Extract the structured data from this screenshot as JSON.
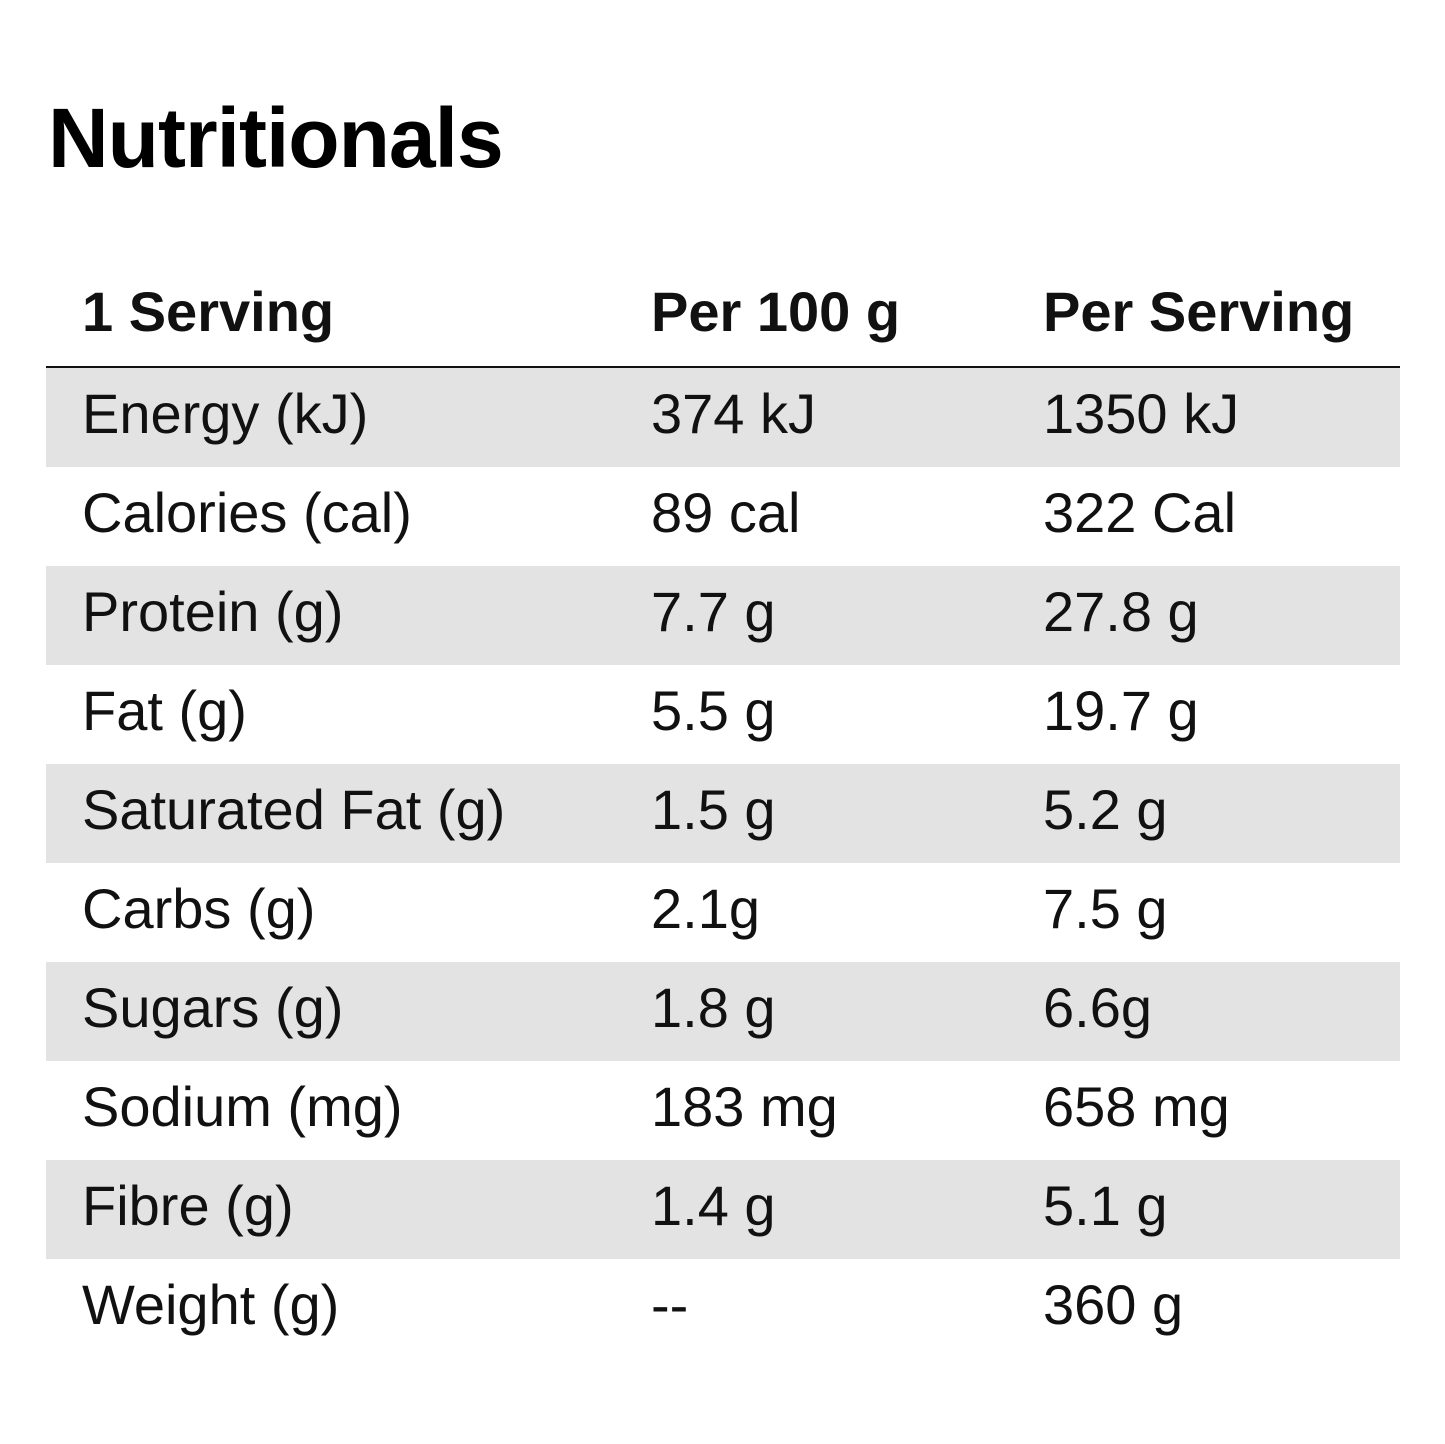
{
  "title": "Nutritionals",
  "table": {
    "headers": [
      "1 Serving",
      "Per 100 g",
      "Per Serving"
    ],
    "rows": [
      {
        "label": "Energy (kJ)",
        "per100": "374 kJ",
        "perServing": "1350 kJ"
      },
      {
        "label": "Calories (cal)",
        "per100": "89 cal",
        "perServing": "322 Cal"
      },
      {
        "label": "Protein (g)",
        "per100": "7.7 g",
        "perServing": "27.8 g"
      },
      {
        "label": "Fat (g)",
        "per100": "5.5 g",
        "perServing": "19.7 g"
      },
      {
        "label": "Saturated Fat (g)",
        "per100": "1.5 g",
        "perServing": "5.2 g"
      },
      {
        "label": "Carbs (g)",
        "per100": "2.1g",
        "perServing": "7.5 g"
      },
      {
        "label": "Sugars (g)",
        "per100": "1.8 g",
        "perServing": "6.6g"
      },
      {
        "label": "Sodium (mg)",
        "per100": "183 mg",
        "perServing": "658 mg"
      },
      {
        "label": "Fibre (g)",
        "per100": "1.4 g",
        "perServing": "5.1 g"
      },
      {
        "label": "Weight (g)",
        "per100": "--",
        "perServing": "360 g"
      }
    ]
  }
}
